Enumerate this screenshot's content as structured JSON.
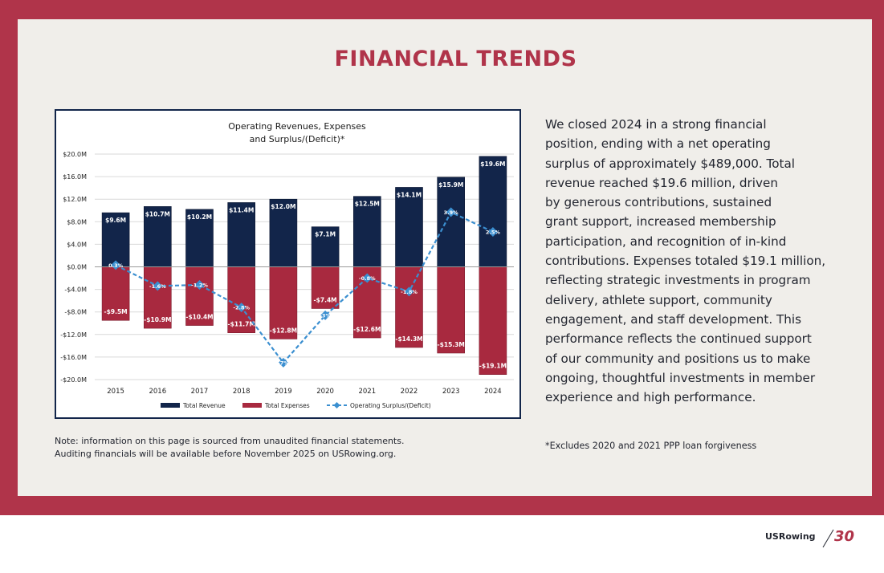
{
  "page": {
    "title": "FINANCIAL TRENDS",
    "paragraph_lines": [
      "We closed 2024 in a strong financial",
      "position, ending with a net operating",
      "surplus of approximately $489,000. Total",
      "revenue reached $19.6 million, driven",
      "by generous contributions, sustained",
      "grant support, increased membership",
      "participation, and recognition of in-kind",
      "contributions. Expenses totaled $19.1 million,",
      "reflecting strategic investments in program",
      "delivery, athlete support, community",
      "engagement, and staff development. This",
      "performance reflects the continued support",
      "of our community and positions us to make",
      "ongoing, thoughtful investments in member",
      "experience and high performance."
    ],
    "note_lines": [
      "Note: information on this page is sourced from unaudited financial statements.",
      "Auditing financials will be available before November 2025 on USRowing.org."
    ],
    "footnote": "*Excludes 2020 and 2021 PPP loan forgiveness",
    "brand": "USRowing",
    "page_number": "30"
  },
  "colors": {
    "frame": "#b0344a",
    "paper": "#f0eeea",
    "revenue": "#12254a",
    "expenses": "#a8293f",
    "surplus_line": "#3b8fd0"
  },
  "chart_data": {
    "type": "bar",
    "title_lines": [
      "Operating Revenues, Expenses",
      "and Surplus/(Deficit)*"
    ],
    "categories": [
      "2015",
      "2016",
      "2017",
      "2018",
      "2019",
      "2020",
      "2021",
      "2022",
      "2023",
      "2024"
    ],
    "ylim": [
      -20,
      20
    ],
    "yticks": [
      20,
      16,
      12,
      8,
      4,
      0,
      -4,
      -8,
      -12,
      -16,
      -20
    ],
    "ytick_labels": [
      "$20.0M",
      "$16.0M",
      "$12.0M",
      "$8.0M",
      "$4.0M",
      "$0.0M",
      "-$4.0M",
      "-$8.0M",
      "-$12.0M",
      "-$16.0M",
      "-$20.0M"
    ],
    "series": [
      {
        "name": "Total Revenue",
        "values": [
          9.6,
          10.7,
          10.2,
          11.4,
          12.0,
          7.1,
          12.5,
          14.1,
          15.9,
          19.6
        ],
        "labels": [
          "$9.6M",
          "$10.7M",
          "$10.2M",
          "$11.4M",
          "$12.0M",
          "$7.1M",
          "$12.5M",
          "$14.1M",
          "$15.9M",
          "$19.6M"
        ]
      },
      {
        "name": "Total Expenses",
        "values": [
          -9.5,
          -10.9,
          -10.4,
          -11.7,
          -12.8,
          -7.4,
          -12.6,
          -14.3,
          -15.3,
          -19.1
        ],
        "labels": [
          "-$9.5M",
          "-$10.9M",
          "-$10.4M",
          "-$11.7M",
          "-$12.8M",
          "-$7.4M",
          "-$12.6M",
          "-$14.3M",
          "-$15.3M",
          "-$19.1M"
        ]
      },
      {
        "name": "Operating Surplus/(Deficit)",
        "values": [
          0.3,
          -3.4,
          -3.2,
          -7.2,
          -17.0,
          -8.6,
          -2.0,
          -4.4,
          9.7,
          6.2
        ],
        "labels": [
          "0.3%",
          "-1.6%",
          "-1.2%",
          "-2.8%",
          "-7%",
          "-3%",
          "-0.8%",
          "-1.8%",
          "3.9%",
          "2.5%"
        ]
      }
    ],
    "legend": [
      "Total Revenue",
      "Total Expenses",
      "Operating Surplus/(Deficit)"
    ],
    "legend_position": "bottom",
    "grid": true
  }
}
